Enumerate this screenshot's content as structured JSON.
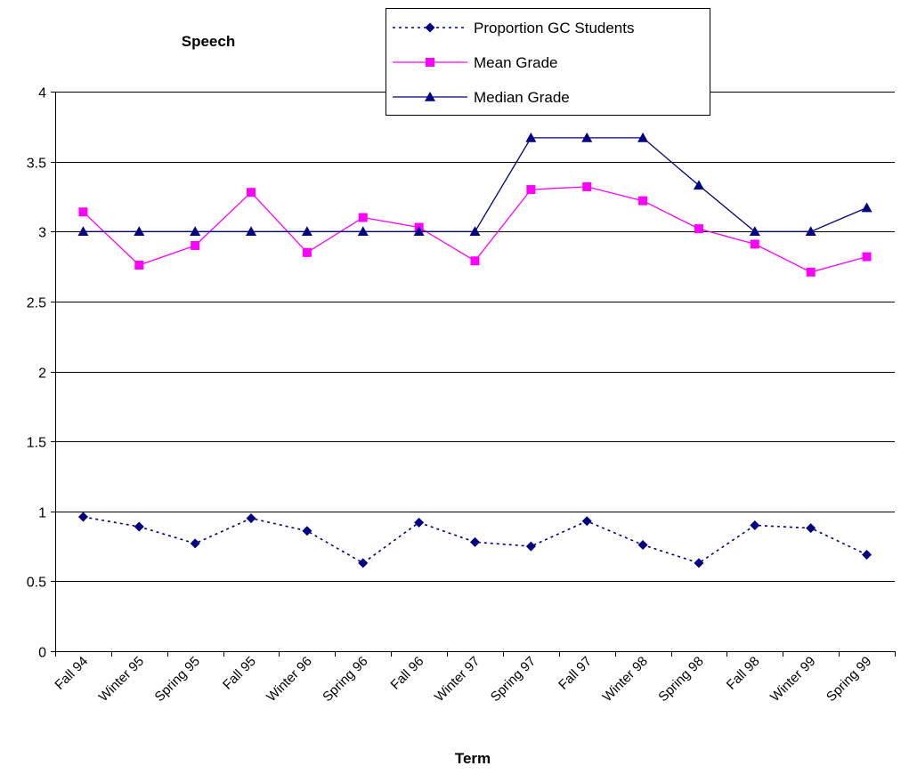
{
  "chart_data": {
    "type": "line",
    "title": "Speech",
    "xlabel": "Term",
    "ylabel": "",
    "categories": [
      "Fall 94",
      "Winter 95",
      "Spring 95",
      "Fall 95",
      "Winter 96",
      "Spring 96",
      "Fall 96",
      "Winter 97",
      "Spring 97",
      "Fall 97",
      "Winter 98",
      "Spring 98",
      "Fall 98",
      "Winter 99",
      "Spring 99"
    ],
    "ylim": [
      0,
      4
    ],
    "yticks": [
      "0",
      "0.5",
      "1",
      "1.5",
      "2",
      "2.5",
      "3",
      "3.5",
      "4"
    ],
    "grid": true,
    "legend_position": "top-right",
    "series": [
      {
        "name": "Proportion GC Students",
        "color": "#000080",
        "marker": "diamond",
        "line_style": "dotted",
        "values": [
          0.96,
          0.89,
          0.77,
          0.95,
          0.86,
          0.63,
          0.92,
          0.78,
          0.75,
          0.93,
          0.76,
          0.63,
          0.9,
          0.88,
          0.69
        ]
      },
      {
        "name": "Mean Grade",
        "color": "#ff00ff",
        "marker": "square",
        "line_style": "solid",
        "values": [
          3.14,
          2.76,
          2.9,
          3.28,
          2.85,
          3.1,
          3.03,
          2.79,
          3.3,
          3.32,
          3.22,
          3.02,
          2.91,
          2.71,
          2.82
        ]
      },
      {
        "name": "Median Grade",
        "color": "#000080",
        "marker": "triangle",
        "line_style": "solid",
        "values": [
          3.0,
          3.0,
          3.0,
          3.0,
          3.0,
          3.0,
          3.0,
          3.0,
          3.67,
          3.67,
          3.67,
          3.33,
          3.0,
          3.0,
          3.17
        ]
      }
    ]
  }
}
